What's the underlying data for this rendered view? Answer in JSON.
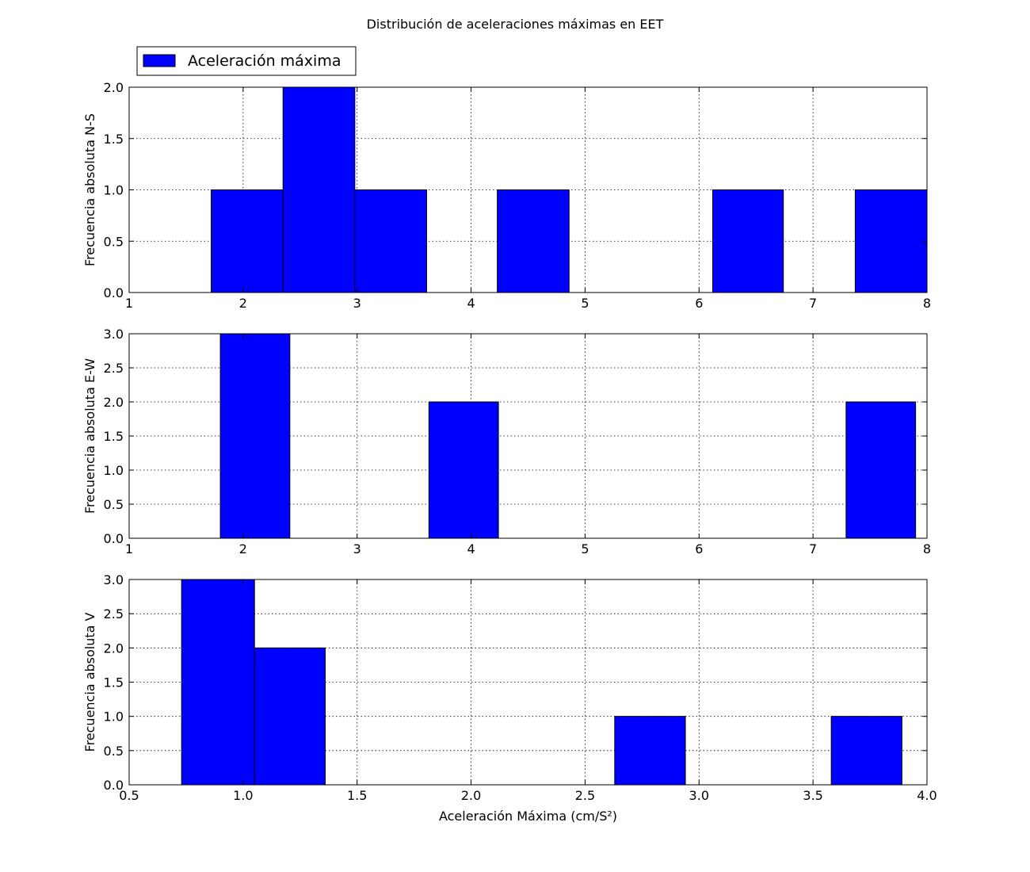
{
  "figure": {
    "title": "Distribución de aceleraciones máximas en EET",
    "legend": {
      "label": "Aceleración máxima",
      "color": "#0000ff",
      "placement": "top-left, above first panel"
    }
  },
  "chart_data": [
    {
      "type": "bar",
      "subtype": "histogram",
      "ylabel": "Frecuencia absoluta N-S",
      "xlabel": "",
      "xlim": [
        1,
        8
      ],
      "ylim": [
        0,
        2
      ],
      "xticks": [
        1,
        2,
        3,
        4,
        5,
        6,
        7,
        8
      ],
      "yticks": [
        0.0,
        0.5,
        1.0,
        1.5,
        2.0
      ],
      "grid": true,
      "color": "#0000ff",
      "bins": [
        {
          "x0": 1.72,
          "x1": 2.35,
          "value": 1
        },
        {
          "x0": 2.35,
          "x1": 2.98,
          "value": 2
        },
        {
          "x0": 2.98,
          "x1": 3.61,
          "value": 1
        },
        {
          "x0": 3.61,
          "x1": 4.23,
          "value": 0
        },
        {
          "x0": 4.23,
          "x1": 4.86,
          "value": 1
        },
        {
          "x0": 4.86,
          "x1": 5.49,
          "value": 0
        },
        {
          "x0": 5.49,
          "x1": 6.12,
          "value": 0
        },
        {
          "x0": 6.12,
          "x1": 6.74,
          "value": 1
        },
        {
          "x0": 6.74,
          "x1": 7.37,
          "value": 0
        },
        {
          "x0": 7.37,
          "x1": 8.0,
          "value": 1
        }
      ]
    },
    {
      "type": "bar",
      "subtype": "histogram",
      "ylabel": "Frecuencia absoluta E-W",
      "xlabel": "",
      "xlim": [
        1,
        8
      ],
      "ylim": [
        0,
        3
      ],
      "xticks": [
        1,
        2,
        3,
        4,
        5,
        6,
        7,
        8
      ],
      "yticks": [
        0.0,
        0.5,
        1.0,
        1.5,
        2.0,
        2.5,
        3.0
      ],
      "grid": true,
      "color": "#0000ff",
      "bins": [
        {
          "x0": 1.8,
          "x1": 2.41,
          "value": 3
        },
        {
          "x0": 2.41,
          "x1": 3.02,
          "value": 0
        },
        {
          "x0": 3.02,
          "x1": 3.63,
          "value": 0
        },
        {
          "x0": 3.63,
          "x1": 4.24,
          "value": 2
        },
        {
          "x0": 4.24,
          "x1": 4.85,
          "value": 0
        },
        {
          "x0": 4.85,
          "x1": 5.46,
          "value": 0
        },
        {
          "x0": 5.46,
          "x1": 6.07,
          "value": 0
        },
        {
          "x0": 6.07,
          "x1": 6.68,
          "value": 0
        },
        {
          "x0": 6.68,
          "x1": 7.29,
          "value": 0
        },
        {
          "x0": 7.29,
          "x1": 7.9,
          "value": 2
        }
      ]
    },
    {
      "type": "bar",
      "subtype": "histogram",
      "ylabel": "Frecuencia absoluta V",
      "xlabel": "Aceleración Máxima (cm/S²)",
      "xlim": [
        0.5,
        4.0
      ],
      "ylim": [
        0,
        3
      ],
      "xticks": [
        0.5,
        1.0,
        1.5,
        2.0,
        2.5,
        3.0,
        3.5,
        4.0
      ],
      "yticks": [
        0.0,
        0.5,
        1.0,
        1.5,
        2.0,
        2.5,
        3.0
      ],
      "grid": true,
      "color": "#0000ff",
      "bins": [
        {
          "x0": 0.73,
          "x1": 1.05,
          "value": 3
        },
        {
          "x0": 1.05,
          "x1": 1.36,
          "value": 2
        },
        {
          "x0": 1.36,
          "x1": 1.68,
          "value": 0
        },
        {
          "x0": 1.68,
          "x1": 1.99,
          "value": 0
        },
        {
          "x0": 1.99,
          "x1": 2.31,
          "value": 0
        },
        {
          "x0": 2.31,
          "x1": 2.63,
          "value": 0
        },
        {
          "x0": 2.63,
          "x1": 2.94,
          "value": 1
        },
        {
          "x0": 2.94,
          "x1": 3.26,
          "value": 0
        },
        {
          "x0": 3.26,
          "x1": 3.58,
          "value": 0
        },
        {
          "x0": 3.58,
          "x1": 3.89,
          "value": 1
        }
      ]
    }
  ]
}
